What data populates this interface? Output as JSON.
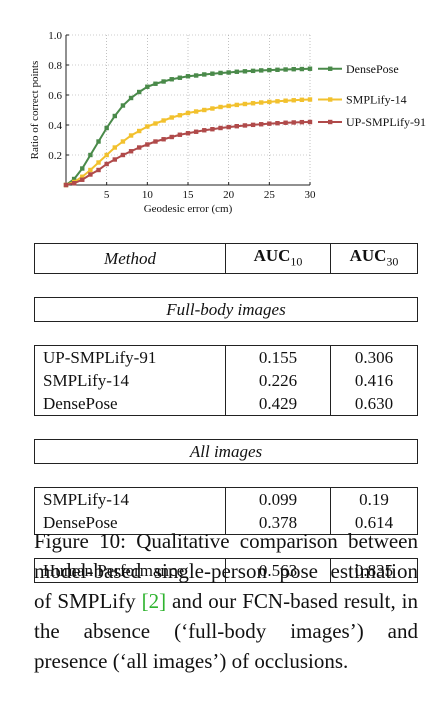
{
  "chart_data": {
    "type": "line",
    "xlabel": "Geodesic error (cm)",
    "ylabel": "Ratio of correct points",
    "xlim": [
      0,
      30
    ],
    "ylim": [
      0,
      1.0
    ],
    "xticks": [
      "5",
      "10",
      "15",
      "20",
      "25",
      "30"
    ],
    "yticks": [
      "0.2",
      "0.4",
      "0.6",
      "0.8",
      "1.0"
    ],
    "grid": true,
    "legend_position": "right",
    "x": [
      0,
      1,
      2,
      3,
      4,
      5,
      6,
      7,
      8,
      9,
      10,
      11,
      12,
      13,
      14,
      15,
      16,
      17,
      18,
      19,
      20,
      21,
      22,
      23,
      24,
      25,
      26,
      27,
      28,
      29,
      30
    ],
    "series": [
      {
        "name": "DensePose",
        "color": "#4a8a4a",
        "values": [
          0.0,
          0.04,
          0.11,
          0.2,
          0.29,
          0.38,
          0.46,
          0.53,
          0.58,
          0.62,
          0.655,
          0.675,
          0.69,
          0.705,
          0.715,
          0.725,
          0.73,
          0.737,
          0.742,
          0.747,
          0.75,
          0.755,
          0.758,
          0.761,
          0.764,
          0.766,
          0.768,
          0.77,
          0.772,
          0.773,
          0.775
        ]
      },
      {
        "name": "SMPLify-14",
        "color": "#f2c12e",
        "values": [
          0.0,
          0.02,
          0.055,
          0.1,
          0.15,
          0.2,
          0.25,
          0.29,
          0.33,
          0.36,
          0.39,
          0.41,
          0.43,
          0.45,
          0.465,
          0.48,
          0.49,
          0.5,
          0.51,
          0.52,
          0.527,
          0.534,
          0.54,
          0.545,
          0.55,
          0.554,
          0.558,
          0.562,
          0.565,
          0.568,
          0.57
        ]
      },
      {
        "name": "UP-SMPLify-91",
        "color": "#b04a4a",
        "values": [
          0.0,
          0.012,
          0.035,
          0.07,
          0.1,
          0.14,
          0.17,
          0.2,
          0.225,
          0.25,
          0.27,
          0.29,
          0.305,
          0.32,
          0.335,
          0.345,
          0.355,
          0.365,
          0.372,
          0.38,
          0.386,
          0.392,
          0.397,
          0.401,
          0.405,
          0.409,
          0.412,
          0.415,
          0.417,
          0.419,
          0.42
        ]
      }
    ]
  },
  "table": {
    "header": {
      "method": "Method",
      "auc10_main": "AUC",
      "auc10_sub": "10",
      "auc30_main": "AUC",
      "auc30_sub": "30"
    },
    "sections": [
      {
        "title": "Full-body images",
        "rows": [
          {
            "method": "UP-SMPLify-91",
            "auc10": "0.155",
            "auc30": "0.306"
          },
          {
            "method": "SMPLify-14",
            "auc10": "0.226",
            "auc30": "0.416"
          },
          {
            "method": "DensePose",
            "auc10": "0.429",
            "auc30": "0.630"
          }
        ]
      },
      {
        "title": "All images",
        "rows": [
          {
            "method": "SMPLify-14",
            "auc10": "0.099",
            "auc30": "0.19"
          },
          {
            "method": "DensePose",
            "auc10": "0.378",
            "auc30": "0.614"
          }
        ]
      }
    ],
    "human": {
      "method": "Human Performance",
      "auc10": "0.563",
      "auc30": "0.835"
    }
  },
  "caption": {
    "part1": "Figure 10: Qualitative comparison between model-based single-person pose estimation of SMPLify ",
    "ref": "[2]",
    "part2": " and our FCN-based result, in the absence (‘full-body images’) and presence (‘all images’) of occlusions."
  }
}
